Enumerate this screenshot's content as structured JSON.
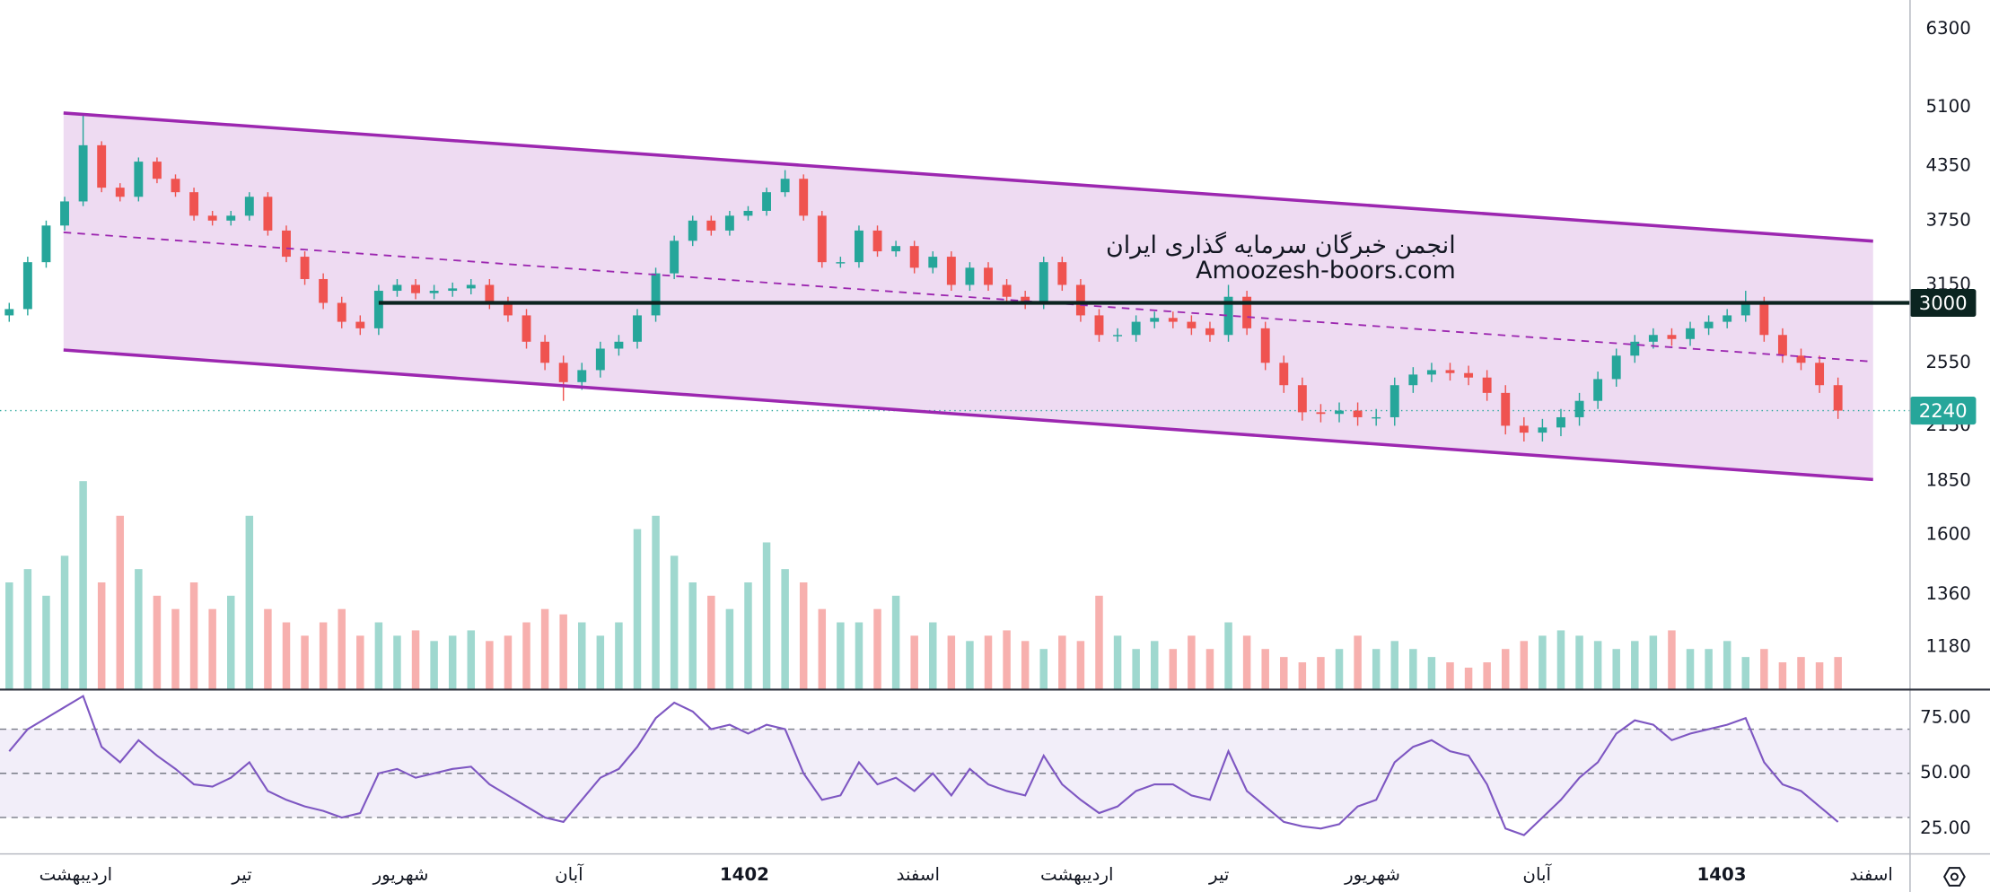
{
  "chart_data": [
    {
      "type": "candlestick",
      "log_scale": true,
      "up_color": "#26a69a",
      "down_color": "#ef5350",
      "open": [
        2900,
        2950,
        3350,
        3700,
        3950,
        4600,
        4100,
        4000,
        4400,
        4200,
        4050,
        3800,
        3750,
        3800,
        4000,
        3650,
        3400,
        3200,
        3000,
        2850,
        2800,
        3100,
        3150,
        3080,
        3100,
        3120,
        3150,
        3000,
        2900,
        2700,
        2550,
        2420,
        2500,
        2650,
        2700,
        2900,
        3250,
        3550,
        3750,
        3650,
        3800,
        3850,
        4050,
        4200,
        3800,
        3350,
        3350,
        3650,
        3450,
        3500,
        3300,
        3400,
        3150,
        3300,
        3150,
        3050,
        3000,
        3350,
        3150,
        2900,
        2750,
        2750,
        2850,
        2880,
        2850,
        2800,
        2750,
        3050,
        2800,
        2550,
        2400,
        2230,
        2220,
        2240,
        2200,
        2200,
        2400,
        2470,
        2500,
        2480,
        2450,
        2350,
        2150,
        2110,
        2140,
        2200,
        2300,
        2440,
        2600,
        2700,
        2750,
        2720,
        2800,
        2850,
        2900,
        3000,
        2750,
        2600,
        2550,
        2400
      ],
      "high": [
        3000,
        3400,
        3750,
        4000,
        5000,
        4650,
        4150,
        4450,
        4450,
        4250,
        4100,
        3850,
        3850,
        4050,
        4050,
        3700,
        3450,
        3250,
        3050,
        2900,
        3150,
        3200,
        3200,
        3150,
        3170,
        3200,
        3200,
        3050,
        2950,
        2750,
        2600,
        2550,
        2700,
        2750,
        2950,
        3300,
        3600,
        3800,
        3800,
        3850,
        3900,
        4100,
        4300,
        4250,
        3850,
        3400,
        3700,
        3700,
        3550,
        3550,
        3450,
        3450,
        3350,
        3350,
        3200,
        3100,
        3400,
        3400,
        3200,
        2950,
        2800,
        2900,
        2930,
        2930,
        2900,
        2850,
        3150,
        3100,
        2850,
        2600,
        2450,
        2280,
        2290,
        2290,
        2250,
        2450,
        2520,
        2550,
        2550,
        2530,
        2500,
        2400,
        2200,
        2190,
        2250,
        2350,
        2490,
        2650,
        2750,
        2800,
        2800,
        2850,
        2900,
        2950,
        3100,
        3050,
        2800,
        2650,
        2600,
        2450
      ],
      "low": [
        2850,
        2900,
        3300,
        3650,
        3900,
        4050,
        3950,
        3950,
        4150,
        4000,
        3750,
        3700,
        3700,
        3750,
        3600,
        3350,
        3150,
        2950,
        2800,
        2750,
        2750,
        3050,
        3030,
        3030,
        3050,
        3070,
        2950,
        2850,
        2650,
        2500,
        2300,
        2370,
        2450,
        2600,
        2650,
        2850,
        3200,
        3500,
        3600,
        3600,
        3750,
        3800,
        4000,
        3750,
        3300,
        3300,
        3300,
        3400,
        3400,
        3250,
        3250,
        3100,
        3100,
        3100,
        3000,
        2950,
        2950,
        3100,
        2850,
        2700,
        2700,
        2700,
        2800,
        2800,
        2750,
        2700,
        2700,
        2750,
        2500,
        2350,
        2180,
        2170,
        2170,
        2150,
        2150,
        2150,
        2350,
        2420,
        2430,
        2400,
        2300,
        2100,
        2060,
        2060,
        2090,
        2150,
        2250,
        2390,
        2550,
        2650,
        2670,
        2670,
        2750,
        2800,
        2850,
        2700,
        2550,
        2500,
        2350,
        2190
      ],
      "close": [
        2950,
        3350,
        3700,
        3950,
        4600,
        4100,
        4000,
        4400,
        4200,
        4050,
        3800,
        3750,
        3800,
        4000,
        3650,
        3400,
        3200,
        3000,
        2850,
        2800,
        3100,
        3150,
        3080,
        3100,
        3120,
        3150,
        3000,
        2900,
        2700,
        2550,
        2420,
        2500,
        2650,
        2700,
        2900,
        3250,
        3550,
        3750,
        3650,
        3800,
        3850,
        4050,
        4200,
        3800,
        3350,
        3350,
        3650,
        3450,
        3500,
        3300,
        3400,
        3150,
        3300,
        3150,
        3050,
        3000,
        3350,
        3150,
        2900,
        2750,
        2750,
        2850,
        2880,
        2850,
        2800,
        2750,
        3050,
        2800,
        2550,
        2400,
        2230,
        2220,
        2240,
        2200,
        2200,
        2400,
        2470,
        2500,
        2480,
        2450,
        2350,
        2150,
        2110,
        2140,
        2200,
        2300,
        2440,
        2600,
        2700,
        2750,
        2720,
        2800,
        2850,
        2900,
        3000,
        2750,
        2600,
        2550,
        2400,
        2240
      ],
      "xlim": [
        0,
        103.4
      ],
      "xticks": [
        {
          "value": 4.1,
          "label": "اردیبهشت"
        },
        {
          "value": 13.1,
          "label": "تیر"
        },
        {
          "value": 21.7,
          "label": "شهریور"
        },
        {
          "value": 30.8,
          "label": "آبان"
        },
        {
          "value": 40.3,
          "label": "1402"
        },
        {
          "value": 49.7,
          "label": "اسفند"
        },
        {
          "value": 58.3,
          "label": "اردیبهشت"
        },
        {
          "value": 66.0,
          "label": "تیر"
        },
        {
          "value": 74.3,
          "label": "شهریور"
        },
        {
          "value": 83.2,
          "label": "آبان"
        },
        {
          "value": 93.2,
          "label": "1403"
        },
        {
          "value": 101.3,
          "label": "اسفند"
        }
      ],
      "ylim": [
        1053,
        6820
      ],
      "yticks": [
        1180,
        1360,
        1600,
        1850,
        2150,
        2550,
        3150,
        3750,
        4350,
        5100,
        6300
      ],
      "channel": {
        "color": "#9c27b0",
        "x": [
          3.44,
          101.4
        ],
        "upper": [
          5020,
          3547
        ],
        "middle": [
          3632,
          2558
        ],
        "lower": [
          2640,
          1858
        ]
      },
      "resistance": {
        "value": 3000,
        "x_start": 20.5
      },
      "last_price": 2240,
      "annotations": [
        "انجمن خبرگان سرمایه گذاری ایران",
        "Amoozesh-boors.com"
      ]
    },
    {
      "type": "volume",
      "up_color": "#9fd8cf",
      "down_color": "#f7b0ae",
      "ylim": [
        0,
        100
      ],
      "values": [
        40,
        45,
        35,
        50,
        78,
        40,
        65,
        45,
        35,
        30,
        40,
        30,
        35,
        65,
        30,
        25,
        20,
        25,
        30,
        20,
        25,
        20,
        22,
        18,
        20,
        22,
        18,
        20,
        25,
        30,
        28,
        25,
        20,
        25,
        60,
        65,
        50,
        40,
        35,
        30,
        40,
        55,
        45,
        40,
        30,
        25,
        25,
        30,
        35,
        20,
        25,
        20,
        18,
        20,
        22,
        18,
        15,
        20,
        18,
        35,
        20,
        15,
        18,
        15,
        20,
        15,
        25,
        20,
        15,
        12,
        10,
        12,
        15,
        20,
        15,
        18,
        15,
        12,
        10,
        8,
        10,
        15,
        18,
        20,
        22,
        20,
        18,
        15,
        18,
        20,
        22,
        15,
        15,
        18,
        12,
        15,
        10,
        12,
        10,
        12
      ]
    },
    {
      "type": "line",
      "color": "#7e57c2",
      "values": [
        60,
        70,
        75,
        80,
        85,
        62,
        55,
        65,
        58,
        52,
        45,
        44,
        48,
        55,
        42,
        38,
        35,
        33,
        30,
        32,
        50,
        52,
        48,
        50,
        52,
        53,
        45,
        40,
        35,
        30,
        28,
        38,
        48,
        52,
        62,
        75,
        82,
        78,
        70,
        72,
        68,
        72,
        70,
        50,
        38,
        40,
        55,
        45,
        48,
        42,
        50,
        40,
        52,
        45,
        42,
        40,
        58,
        45,
        38,
        32,
        35,
        42,
        45,
        45,
        40,
        38,
        60,
        42,
        35,
        28,
        26,
        25,
        27,
        35,
        38,
        55,
        62,
        65,
        60,
        58,
        45,
        25,
        22,
        30,
        38,
        48,
        55,
        68,
        74,
        72,
        65,
        68,
        70,
        72,
        75,
        55,
        45,
        42,
        35,
        28
      ],
      "ylim": [
        13.5,
        88.2
      ],
      "yticks": [
        {
          "value": 25,
          "label": "25.00"
        },
        {
          "value": 50,
          "label": "50.00"
        },
        {
          "value": 75,
          "label": "75.00"
        }
      ],
      "levels": [
        30,
        50,
        70
      ]
    }
  ]
}
